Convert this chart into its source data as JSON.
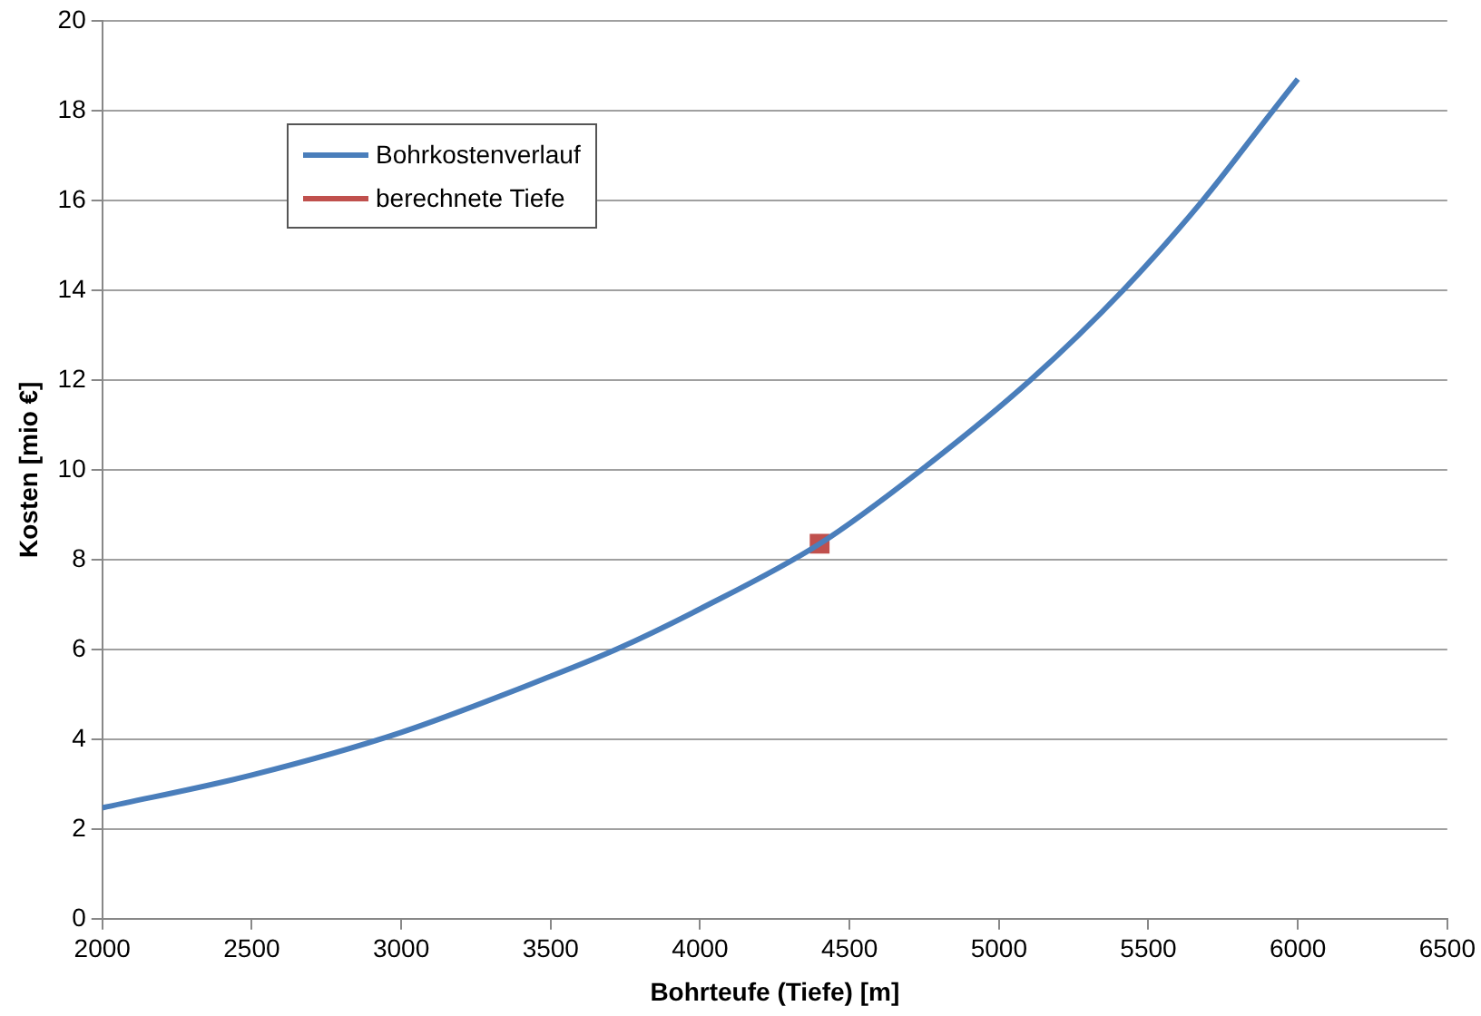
{
  "chart_data": {
    "type": "line",
    "xlabel": "Bohrteufe (Tiefe) [m]",
    "ylabel": "Kosten [mio €]",
    "xlim": [
      2000,
      6500
    ],
    "xticks": [
      2000,
      2500,
      3000,
      3500,
      4000,
      4500,
      5000,
      5500,
      6000,
      6500
    ],
    "ylim": [
      0,
      20
    ],
    "yticks": [
      0,
      2,
      4,
      6,
      8,
      10,
      12,
      14,
      16,
      18,
      20
    ],
    "grid": "y",
    "legend": "top left",
    "marker": "none",
    "line_style": "solid",
    "series": [
      {
        "name": "Bohrkostenverlauf",
        "color": "#4a7ebb",
        "x": [
          2000,
          2500,
          3000,
          3500,
          3720,
          4000,
          4400,
          4741,
          5106,
          5416,
          5682,
          5917,
          6000
        ],
        "values": [
          2.47,
          3.2,
          4.15,
          5.4,
          6,
          6.9,
          8.35,
          10,
          12,
          14,
          16,
          18,
          18.7
        ]
      },
      {
        "name": "berechnete Tiefe",
        "type": "scatter",
        "marker": "square",
        "color": "#c0504d",
        "x": [
          4400
        ],
        "values": [
          8.35
        ]
      }
    ]
  }
}
